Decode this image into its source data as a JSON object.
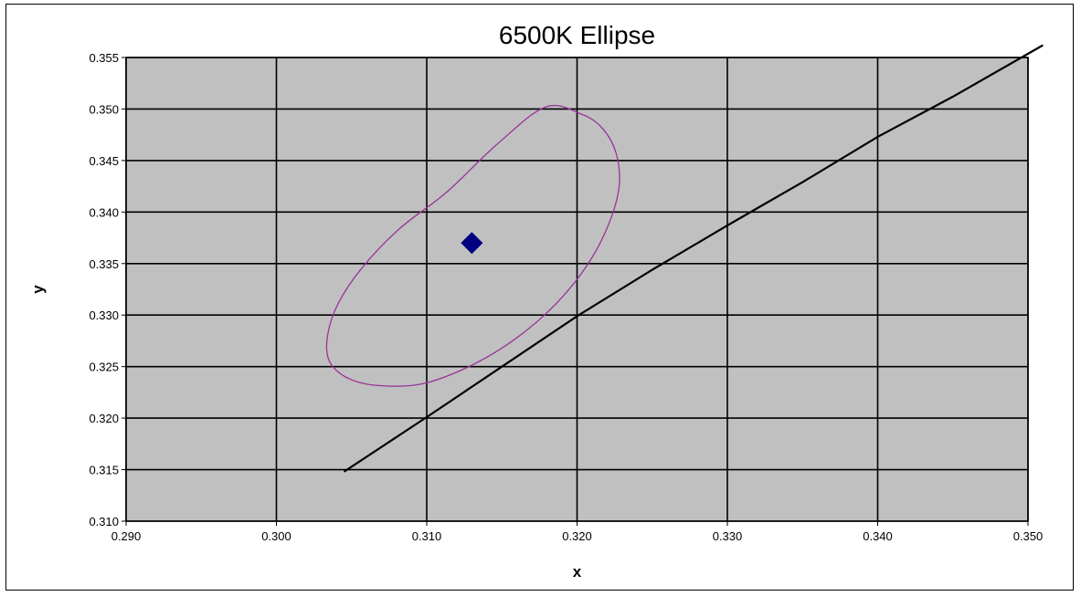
{
  "chart_data": {
    "type": "scatter",
    "title": "6500K Ellipse",
    "xlabel": "x",
    "ylabel": "y",
    "xlim": [
      0.29,
      0.35
    ],
    "ylim": [
      0.31,
      0.355
    ],
    "xticks": [
      "0.290",
      "0.300",
      "0.310",
      "0.320",
      "0.330",
      "0.340",
      "0.350"
    ],
    "yticks": [
      "0.310",
      "0.315",
      "0.320",
      "0.325",
      "0.330",
      "0.335",
      "0.340",
      "0.345",
      "0.350",
      "0.355"
    ],
    "grid": true,
    "legend": "none",
    "colors": {
      "plot_background": "#c0c0c0",
      "gridline": "#000000",
      "ellipse": "#993399",
      "locus": "#000000",
      "point": "#000080"
    },
    "series": [
      {
        "kind": "point",
        "marker": "diamond",
        "x": [
          0.313
        ],
        "y": [
          0.337
        ]
      },
      {
        "kind": "ellipse",
        "center": [
          0.3128,
          0.337
        ],
        "x": [
          0.3203,
          0.3217,
          0.3226,
          0.3228,
          0.3221,
          0.3207,
          0.3186,
          0.3159,
          0.3128,
          0.3096,
          0.3065,
          0.3046,
          0.3035,
          0.3034,
          0.3041,
          0.3057,
          0.3082,
          0.3113,
          0.3147,
          0.3179,
          0.3203
        ],
        "y": [
          0.3495,
          0.3481,
          0.3457,
          0.3425,
          0.3388,
          0.3349,
          0.3311,
          0.3277,
          0.325,
          0.3233,
          0.3232,
          0.324,
          0.3256,
          0.328,
          0.3311,
          0.3346,
          0.3384,
          0.3419,
          0.3466,
          0.3502,
          0.3495
        ]
      },
      {
        "kind": "curve",
        "x": [
          0.3045,
          0.31,
          0.315,
          0.32,
          0.325,
          0.33,
          0.335,
          0.34,
          0.345,
          0.351
        ],
        "y": [
          0.3148,
          0.3201,
          0.325,
          0.3299,
          0.3344,
          0.3387,
          0.3429,
          0.3473,
          0.3512,
          0.3562
        ]
      }
    ]
  }
}
